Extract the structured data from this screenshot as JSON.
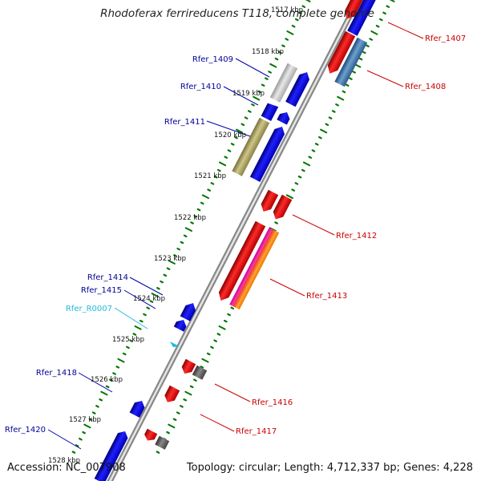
{
  "title": "Rhodoferax ferrireducens T118, complete genome",
  "accession": "Accession: NC_007908",
  "topology": "Topology: circular; Length: 4,712,337 bp; Genes: 4,228",
  "colors": {
    "forward_gene": "#0000ee",
    "reverse_gene": "#ee0000",
    "rna_label": "#22bbdd",
    "backbone": "#888888",
    "tick": "#007700"
  },
  "kbp_labels": [
    "1517 kbp",
    "1518 kbp",
    "1519 kbp",
    "1520 kbp",
    "1521 kbp",
    "1522 kbp",
    "1523 kbp",
    "1524 kbp",
    "1525 kbp",
    "1526 kbp",
    "1527 kbp",
    "1528 kbp"
  ],
  "gene_labels": {
    "left": [
      "Rfer_1409",
      "Rfer_1410",
      "Rfer_1411",
      "Rfer_1414",
      "Rfer_1415",
      "Rfer_R0007",
      "Rfer_1418",
      "Rfer_1420"
    ],
    "right": [
      "Rfer_1407",
      "Rfer_1408",
      "Rfer_1412",
      "Rfer_1413",
      "Rfer_1416",
      "Rfer_1417"
    ]
  }
}
